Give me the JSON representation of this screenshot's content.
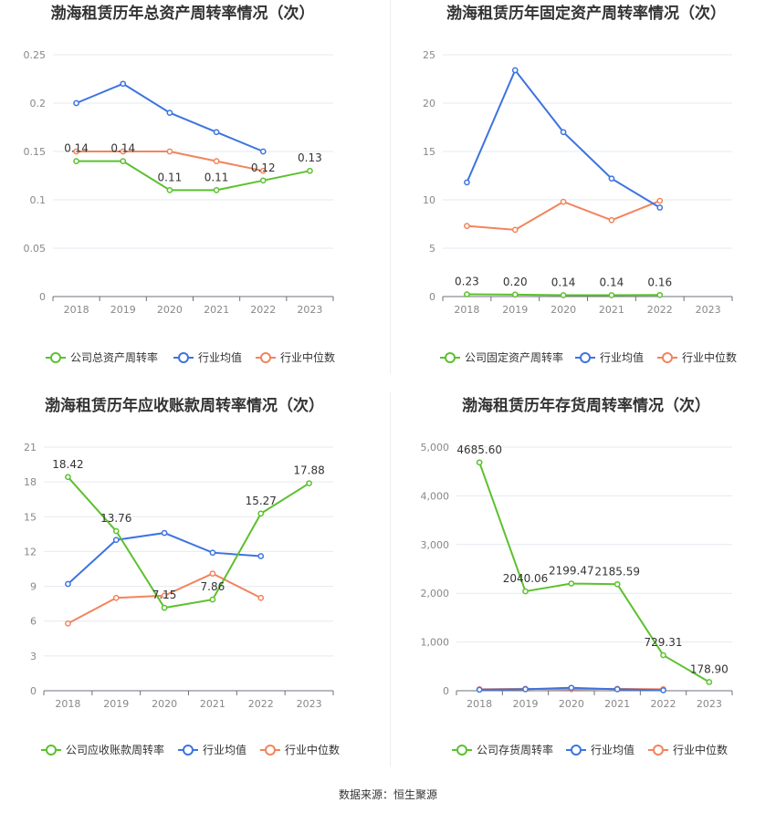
{
  "colors": {
    "company": "#5cc12e",
    "avg": "#3d74e0",
    "median": "#f2845c"
  },
  "source_text": "数据来源：恒生聚源",
  "chart_data": [
    {
      "type": "line",
      "title": "渤海租赁历年总资产周转率情况（次）",
      "categories": [
        "2018",
        "2019",
        "2020",
        "2021",
        "2022",
        "2023"
      ],
      "ylim": [
        0,
        0.25
      ],
      "yticks": [
        "0",
        "0.05",
        "0.1",
        "0.15",
        "0.2",
        "0.25"
      ],
      "ytick_values": [
        0,
        0.05,
        0.1,
        0.15,
        0.2,
        0.25
      ],
      "grid": true,
      "legend": "bottom",
      "series": [
        {
          "name": "公司总资产周转率",
          "key": "company",
          "values": [
            0.14,
            0.14,
            0.11,
            0.11,
            0.12,
            0.13
          ],
          "labels": [
            "0.14",
            "0.14",
            "0.11",
            "0.11",
            "0.12",
            "0.13"
          ]
        },
        {
          "name": "行业均值",
          "key": "avg",
          "values": [
            0.2,
            0.22,
            0.19,
            0.17,
            0.15,
            null
          ]
        },
        {
          "name": "行业中位数",
          "key": "median",
          "values": [
            0.15,
            0.15,
            0.15,
            0.14,
            0.13,
            null
          ]
        }
      ]
    },
    {
      "type": "line",
      "title": "渤海租赁历年固定资产周转率情况（次）",
      "categories": [
        "2018",
        "2019",
        "2020",
        "2021",
        "2022",
        "2023"
      ],
      "ylim": [
        0,
        25
      ],
      "yticks": [
        "0",
        "5",
        "10",
        "15",
        "20",
        "25"
      ],
      "ytick_values": [
        0,
        5,
        10,
        15,
        20,
        25
      ],
      "grid": true,
      "legend": "bottom",
      "series": [
        {
          "name": "公司固定资产周转率",
          "key": "company",
          "values": [
            0.23,
            0.2,
            0.14,
            0.14,
            0.16,
            null
          ],
          "labels": [
            "0.23",
            "0.20",
            "0.14",
            "0.14",
            "0.16",
            null
          ]
        },
        {
          "name": "行业均值",
          "key": "avg",
          "values": [
            11.8,
            23.4,
            17.0,
            12.2,
            9.2,
            null
          ]
        },
        {
          "name": "行业中位数",
          "key": "median",
          "values": [
            7.3,
            6.9,
            9.8,
            7.9,
            9.9,
            null
          ]
        }
      ]
    },
    {
      "type": "line",
      "title": "渤海租赁历年应收账款周转率情况（次）",
      "categories": [
        "2018",
        "2019",
        "2020",
        "2021",
        "2022",
        "2023"
      ],
      "ylim": [
        0,
        21
      ],
      "yticks": [
        "0",
        "3",
        "6",
        "9",
        "12",
        "15",
        "18",
        "21"
      ],
      "ytick_values": [
        0,
        3,
        6,
        9,
        12,
        15,
        18,
        21
      ],
      "grid": true,
      "legend": "bottom",
      "series": [
        {
          "name": "公司应收账款周转率",
          "key": "company",
          "values": [
            18.42,
            13.76,
            7.15,
            7.86,
            15.27,
            17.88
          ],
          "labels": [
            "18.42",
            "13.76",
            "7.15",
            "7.86",
            "15.27",
            "17.88"
          ]
        },
        {
          "name": "行业均值",
          "key": "avg",
          "values": [
            9.2,
            13.0,
            13.6,
            11.9,
            11.6,
            null
          ]
        },
        {
          "name": "行业中位数",
          "key": "median",
          "values": [
            5.8,
            8.0,
            8.2,
            10.1,
            8.0,
            null
          ]
        }
      ]
    },
    {
      "type": "line",
      "title": "渤海租赁历年存货周转率情况（次）",
      "categories": [
        "2018",
        "2019",
        "2020",
        "2021",
        "2022",
        "2023"
      ],
      "ylim": [
        0,
        5000
      ],
      "yticks": [
        "0",
        "1,000",
        "2,000",
        "3,000",
        "4,000",
        "5,000"
      ],
      "ytick_values": [
        0,
        1000,
        2000,
        3000,
        4000,
        5000
      ],
      "grid": true,
      "legend": "bottom",
      "series": [
        {
          "name": "公司存货周转率",
          "key": "company",
          "values": [
            4685.6,
            2040.06,
            2199.47,
            2185.59,
            729.31,
            178.9
          ],
          "labels": [
            "4685.60",
            "2040.06",
            "2199.47",
            "2185.59",
            "729.31",
            "178.90"
          ]
        },
        {
          "name": "行业均值",
          "key": "avg",
          "values": [
            20,
            30,
            60,
            30,
            10,
            null
          ]
        },
        {
          "name": "行业中位数",
          "key": "median",
          "values": [
            30,
            40,
            30,
            40,
            30,
            null
          ]
        }
      ]
    }
  ]
}
